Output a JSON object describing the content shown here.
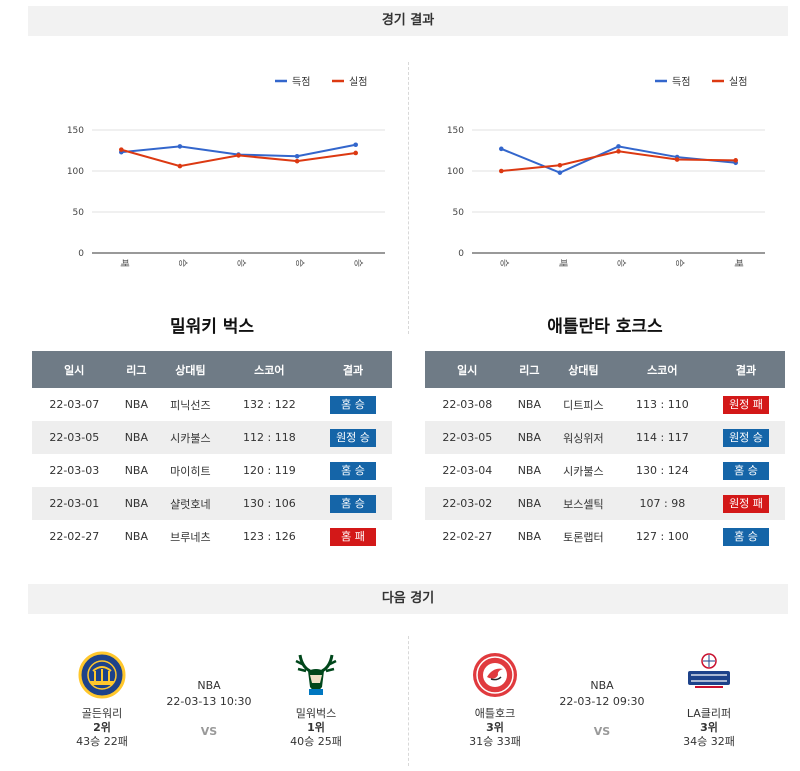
{
  "headers": {
    "results": "경기 결과",
    "next": "다음 경기"
  },
  "legend": {
    "scored": "득점",
    "conceded": "실점"
  },
  "colors": {
    "scored": "#3366cc",
    "conceded": "#dc3912",
    "win": "#1565a8",
    "loss": "#d31818"
  },
  "chart_data": [
    {
      "type": "line",
      "categories": [
        "패",
        "승",
        "승",
        "승",
        "승"
      ],
      "yticks": [
        0,
        50,
        100,
        150
      ],
      "ylim": [
        0,
        150
      ],
      "series": [
        {
          "name": "득점",
          "values": [
            123,
            130,
            120,
            118,
            132
          ]
        },
        {
          "name": "실점",
          "values": [
            126,
            106,
            119,
            112,
            122
          ]
        }
      ]
    },
    {
      "type": "line",
      "categories": [
        "승",
        "패",
        "승",
        "승",
        "패"
      ],
      "yticks": [
        0,
        50,
        100,
        150
      ],
      "ylim": [
        0,
        150
      ],
      "series": [
        {
          "name": "득점",
          "values": [
            127,
            98,
            130,
            117,
            110
          ]
        },
        {
          "name": "실점",
          "values": [
            100,
            107,
            124,
            114,
            113
          ]
        }
      ]
    }
  ],
  "teams": {
    "left": {
      "title": "밀워키 벅스",
      "columns": [
        "일시",
        "리그",
        "상대팀",
        "스코어",
        "결과"
      ],
      "rows": [
        {
          "date": "22-03-07",
          "league": "NBA",
          "opponent": "피닉선즈",
          "score": "132 : 122",
          "result": "홈 승",
          "win": true
        },
        {
          "date": "22-03-05",
          "league": "NBA",
          "opponent": "시카불스",
          "score": "112 : 118",
          "result": "원정 승",
          "win": true
        },
        {
          "date": "22-03-03",
          "league": "NBA",
          "opponent": "마이히트",
          "score": "120 : 119",
          "result": "홈 승",
          "win": true
        },
        {
          "date": "22-03-01",
          "league": "NBA",
          "opponent": "샬럿호네",
          "score": "130 : 106",
          "result": "홈 승",
          "win": true
        },
        {
          "date": "22-02-27",
          "league": "NBA",
          "opponent": "브루네츠",
          "score": "123 : 126",
          "result": "홈 패",
          "win": false
        }
      ]
    },
    "right": {
      "title": "애틀란타 호크스",
      "columns": [
        "일시",
        "리그",
        "상대팀",
        "스코어",
        "결과"
      ],
      "rows": [
        {
          "date": "22-03-08",
          "league": "NBA",
          "opponent": "디트피스",
          "score": "113 : 110",
          "result": "원정 패",
          "win": false
        },
        {
          "date": "22-03-05",
          "league": "NBA",
          "opponent": "워싱위저",
          "score": "114 : 117",
          "result": "원정 승",
          "win": true
        },
        {
          "date": "22-03-04",
          "league": "NBA",
          "opponent": "시카불스",
          "score": "130 : 124",
          "result": "홈 승",
          "win": true
        },
        {
          "date": "22-03-02",
          "league": "NBA",
          "opponent": "보스셀틱",
          "score": "107 : 98",
          "result": "원정 패",
          "win": false
        },
        {
          "date": "22-02-27",
          "league": "NBA",
          "opponent": "토론랩터",
          "score": "127 : 100",
          "result": "홈 승",
          "win": true
        }
      ]
    }
  },
  "next_games": [
    {
      "league": "NBA",
      "time": "22-03-13 10:30",
      "vs": "VS",
      "home": {
        "name": "골든워리",
        "rank": "2위",
        "record": "43승 22패",
        "logo": "warriors-logo"
      },
      "away": {
        "name": "밀워벅스",
        "rank": "1위",
        "record": "40승 25패",
        "logo": "bucks-logo"
      }
    },
    {
      "league": "NBA",
      "time": "22-03-12 09:30",
      "vs": "VS",
      "home": {
        "name": "애틀호크",
        "rank": "3위",
        "record": "31승 33패",
        "logo": "hawks-logo"
      },
      "away": {
        "name": "LA클리퍼",
        "rank": "3위",
        "record": "34승 32패",
        "logo": "clippers-logo"
      }
    }
  ]
}
